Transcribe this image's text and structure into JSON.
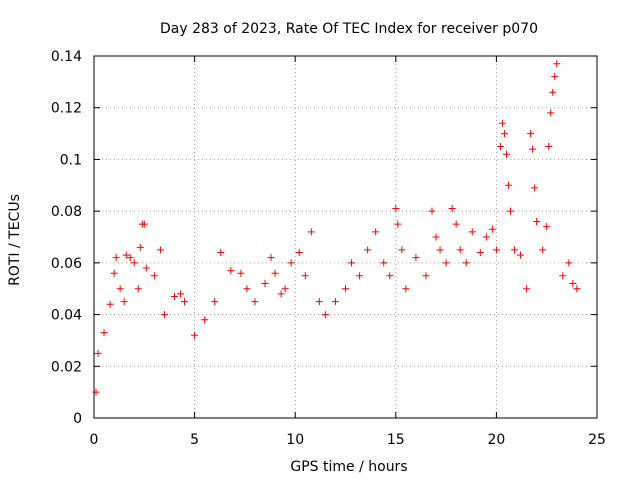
{
  "chart_data": {
    "type": "scatter",
    "title": "Day 283 of 2023, Rate Of TEC Index for receiver p070",
    "xlabel": "GPS time / hours",
    "ylabel": "ROTI / TECUs",
    "xlim": [
      0,
      25
    ],
    "ylim": [
      0,
      0.14
    ],
    "x_ticks": [
      0,
      5,
      10,
      15,
      20,
      25
    ],
    "x_tick_labels": [
      "0",
      "5",
      "10",
      "15",
      "20",
      "25"
    ],
    "y_ticks": [
      0,
      0.02,
      0.04,
      0.06,
      0.08,
      0.1,
      0.12,
      0.14
    ],
    "y_tick_labels": [
      "0",
      "0.02",
      "0.04",
      "0.06",
      "0.08",
      "0.1",
      "0.12",
      "0.14"
    ],
    "grid": true,
    "marker": "plus",
    "color": "#ff0000",
    "series": [
      {
        "points": [
          [
            0.1,
            0.01
          ],
          [
            0.2,
            0.025
          ],
          [
            0.5,
            0.033
          ],
          [
            0.8,
            0.044
          ],
          [
            1.0,
            0.056
          ],
          [
            1.1,
            0.062
          ],
          [
            1.3,
            0.05
          ],
          [
            1.5,
            0.045
          ],
          [
            1.6,
            0.063
          ],
          [
            1.8,
            0.062
          ],
          [
            2.0,
            0.06
          ],
          [
            2.2,
            0.05
          ],
          [
            2.3,
            0.066
          ],
          [
            2.4,
            0.075
          ],
          [
            2.5,
            0.075
          ],
          [
            2.6,
            0.058
          ],
          [
            3.0,
            0.055
          ],
          [
            3.3,
            0.065
          ],
          [
            3.5,
            0.04
          ],
          [
            4.0,
            0.047
          ],
          [
            4.3,
            0.048
          ],
          [
            4.5,
            0.045
          ],
          [
            5.0,
            0.032
          ],
          [
            5.5,
            0.038
          ],
          [
            6.0,
            0.045
          ],
          [
            6.3,
            0.064
          ],
          [
            6.8,
            0.057
          ],
          [
            7.3,
            0.056
          ],
          [
            7.6,
            0.05
          ],
          [
            8.0,
            0.045
          ],
          [
            8.5,
            0.052
          ],
          [
            8.8,
            0.062
          ],
          [
            9.0,
            0.056
          ],
          [
            9.3,
            0.048
          ],
          [
            9.5,
            0.05
          ],
          [
            9.8,
            0.06
          ],
          [
            10.2,
            0.064
          ],
          [
            10.5,
            0.055
          ],
          [
            10.8,
            0.072
          ],
          [
            11.2,
            0.045
          ],
          [
            11.5,
            0.04
          ],
          [
            12.0,
            0.045
          ],
          [
            12.5,
            0.05
          ],
          [
            12.8,
            0.06
          ],
          [
            13.2,
            0.055
          ],
          [
            13.6,
            0.065
          ],
          [
            14.0,
            0.072
          ],
          [
            14.4,
            0.06
          ],
          [
            14.7,
            0.055
          ],
          [
            15.0,
            0.081
          ],
          [
            15.1,
            0.075
          ],
          [
            15.3,
            0.065
          ],
          [
            15.5,
            0.05
          ],
          [
            16.0,
            0.062
          ],
          [
            16.5,
            0.055
          ],
          [
            16.8,
            0.08
          ],
          [
            17.0,
            0.07
          ],
          [
            17.2,
            0.065
          ],
          [
            17.5,
            0.06
          ],
          [
            17.8,
            0.081
          ],
          [
            18.0,
            0.075
          ],
          [
            18.2,
            0.065
          ],
          [
            18.5,
            0.06
          ],
          [
            18.8,
            0.072
          ],
          [
            19.2,
            0.064
          ],
          [
            19.5,
            0.07
          ],
          [
            19.8,
            0.073
          ],
          [
            20.0,
            0.065
          ],
          [
            20.2,
            0.105
          ],
          [
            20.3,
            0.114
          ],
          [
            20.4,
            0.11
          ],
          [
            20.5,
            0.102
          ],
          [
            20.6,
            0.09
          ],
          [
            20.7,
            0.08
          ],
          [
            20.9,
            0.065
          ],
          [
            21.2,
            0.063
          ],
          [
            21.5,
            0.05
          ],
          [
            21.7,
            0.11
          ],
          [
            21.8,
            0.104
          ],
          [
            21.9,
            0.089
          ],
          [
            22.0,
            0.076
          ],
          [
            22.3,
            0.065
          ],
          [
            22.5,
            0.074
          ],
          [
            22.6,
            0.105
          ],
          [
            22.7,
            0.118
          ],
          [
            22.8,
            0.126
          ],
          [
            22.9,
            0.132
          ],
          [
            23.0,
            0.137
          ],
          [
            23.3,
            0.055
          ],
          [
            23.6,
            0.06
          ],
          [
            23.8,
            0.052
          ],
          [
            24.0,
            0.05
          ]
        ]
      }
    ]
  }
}
